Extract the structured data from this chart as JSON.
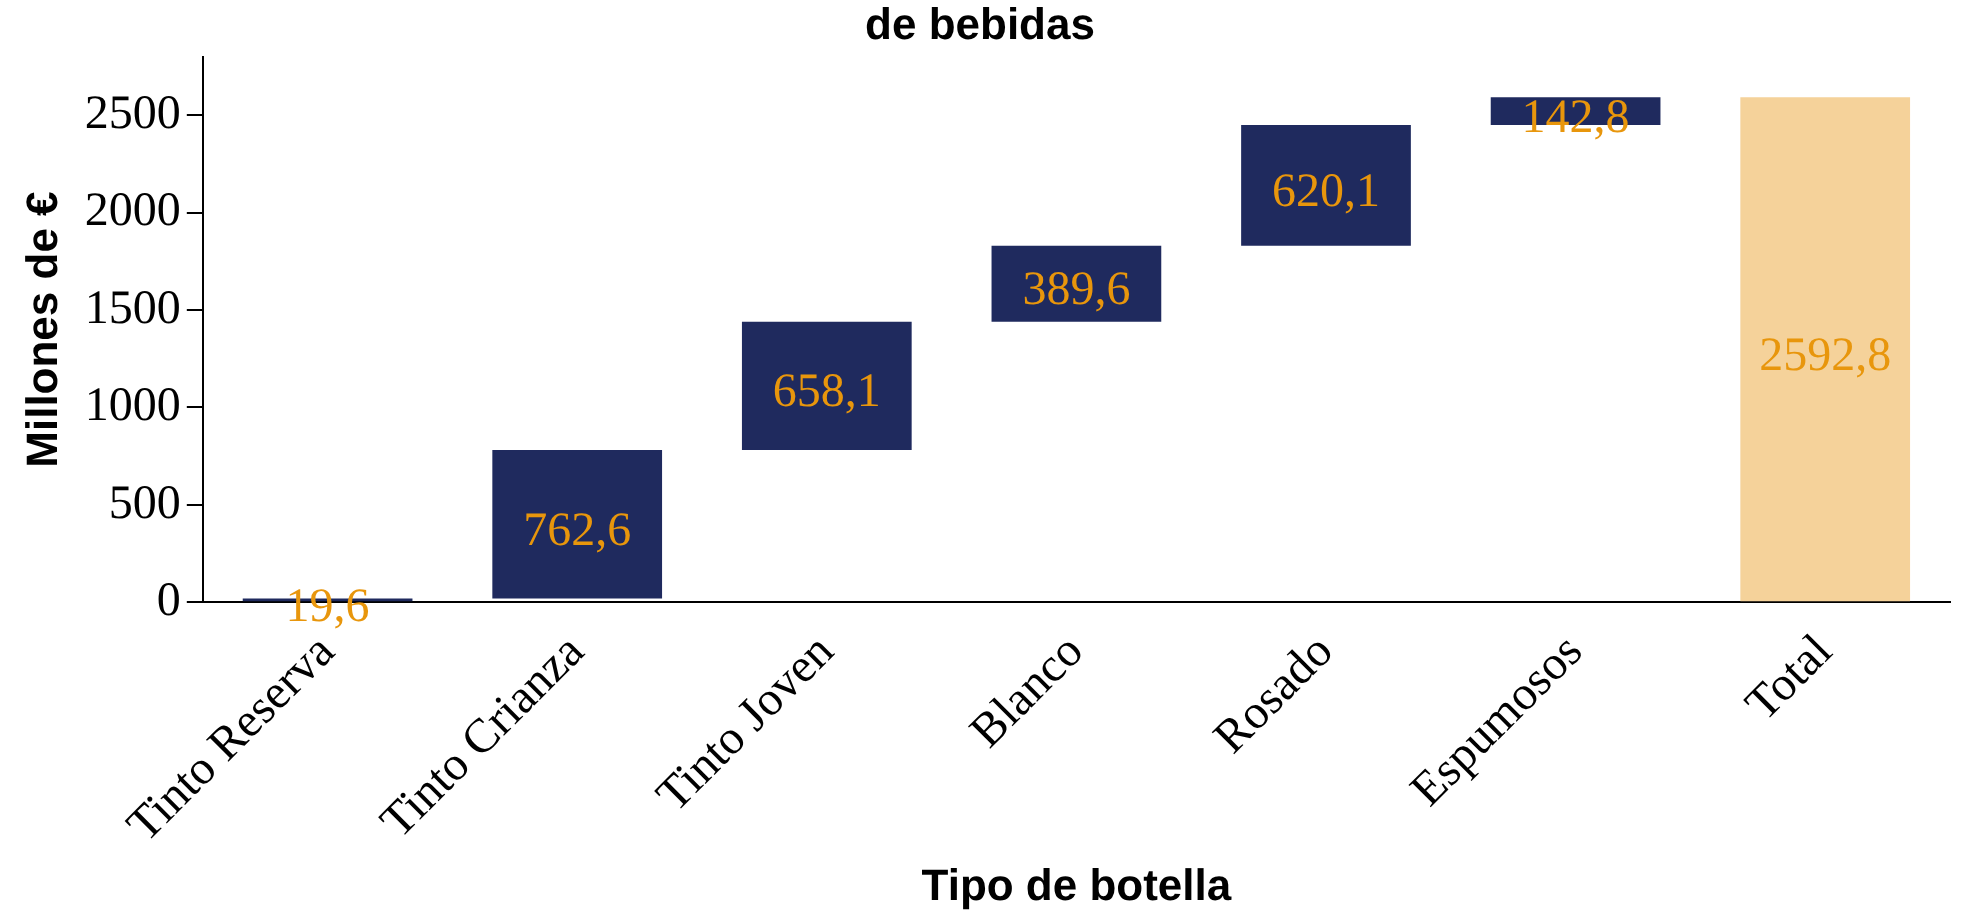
{
  "chart_data": {
    "type": "bar",
    "title": "de bebidas",
    "xlabel": "Tipo de botella",
    "ylabel": "Millones de €",
    "categories": [
      "Tinto Reserva",
      "Tinto Crianza",
      "Tinto Joven",
      "Blanco",
      "Rosado",
      "Espumosos",
      "Total"
    ],
    "values": [
      19.6,
      762.6,
      658.1,
      389.6,
      620.1,
      142.8,
      2592.8
    ],
    "base": [
      0,
      19.6,
      782.2,
      1440.3,
      1829.9,
      2450,
      0
    ],
    "colors": [
      "#1f2a5e",
      "#1f2a5e",
      "#1f2a5e",
      "#1f2a5e",
      "#1f2a5e",
      "#1f2a5e",
      "#f5d29a"
    ],
    "value_labels": [
      "19,6",
      "762,6",
      "658,1",
      "389,6",
      "620,1",
      "142,8",
      "2592,8"
    ],
    "ylim": [
      0,
      2800
    ],
    "yticks": [
      0,
      500,
      1000,
      1500,
      2000,
      2500
    ],
    "grid": false,
    "legend": false
  }
}
